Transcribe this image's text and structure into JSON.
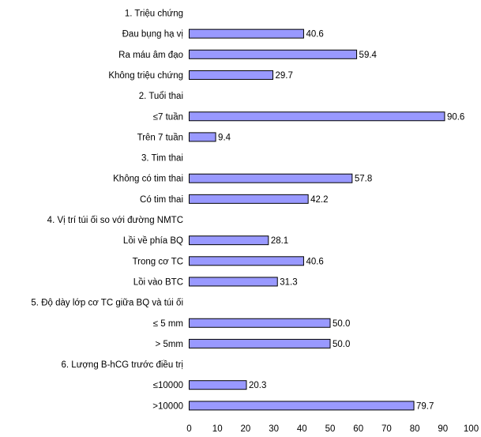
{
  "chart_data": {
    "type": "bar",
    "orientation": "horizontal",
    "title": "",
    "xlabel": "",
    "ylabel": "",
    "xlim": [
      0,
      100
    ],
    "x_ticks": [
      "0",
      "10",
      "20",
      "30",
      "40",
      "50",
      "60",
      "70",
      "80",
      "90",
      "100"
    ],
    "grid": false,
    "legend": "none",
    "bar_color": "#9999ff",
    "rows": [
      {
        "label": "1. Triệu chứng",
        "kind": "group"
      },
      {
        "label": "Đau bụng hạ vị",
        "kind": "bar",
        "value": 40.6,
        "value_label": "40.6"
      },
      {
        "label": "Ra máu âm đạo",
        "kind": "bar",
        "value": 59.4,
        "value_label": "59.4"
      },
      {
        "label": "Không triệu chứng",
        "kind": "bar",
        "value": 29.7,
        "value_label": "29.7"
      },
      {
        "label": "2. Tuổi thai",
        "kind": "group"
      },
      {
        "label": "≤7 tuần",
        "kind": "bar",
        "value": 90.6,
        "value_label": "90.6"
      },
      {
        "label": "Trên 7 tuần",
        "kind": "bar",
        "value": 9.4,
        "value_label": "9.4"
      },
      {
        "label": "3. Tim thai",
        "kind": "group"
      },
      {
        "label": "Không có tim thai",
        "kind": "bar",
        "value": 57.8,
        "value_label": "57.8"
      },
      {
        "label": "Có tim thai",
        "kind": "bar",
        "value": 42.2,
        "value_label": "42.2"
      },
      {
        "label": "4. Vị trí túi ối so với đường NMTC",
        "kind": "group"
      },
      {
        "label": "Lồi về phía BQ",
        "kind": "bar",
        "value": 28.1,
        "value_label": "28.1"
      },
      {
        "label": "Trong cơ TC",
        "kind": "bar",
        "value": 40.6,
        "value_label": "40.6"
      },
      {
        "label": "Lồi vào BTC",
        "kind": "bar",
        "value": 31.3,
        "value_label": "31.3"
      },
      {
        "label": "5. Độ dày lớp cơ TC giữa BQ và túi ối",
        "kind": "group"
      },
      {
        "label": "≤ 5 mm",
        "kind": "bar",
        "value": 50.0,
        "value_label": "50.0"
      },
      {
        "label": "> 5mm",
        "kind": "bar",
        "value": 50.0,
        "value_label": "50.0"
      },
      {
        "label": "6. Lượng B-hCG trước điều trị",
        "kind": "group"
      },
      {
        "label": "≤10000",
        "kind": "bar",
        "value": 20.3,
        "value_label": "20.3"
      },
      {
        "label": ">10000",
        "kind": "bar",
        "value": 79.7,
        "value_label": "79.7"
      }
    ]
  }
}
